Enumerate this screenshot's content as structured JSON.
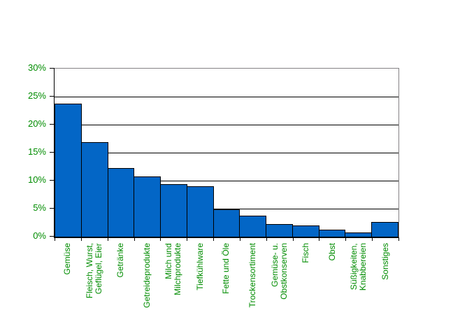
{
  "chart_data": {
    "type": "bar",
    "title": "",
    "xlabel": "",
    "ylabel": "",
    "categories": [
      "Gemüse",
      "Fleisch, Wurst,\nGeflügel, Eier",
      "Getränke",
      "Getreideprodukte",
      "Milch und\nMilchprodukte",
      "Tiefkühlware",
      "Fette und Öle",
      "Trockensortiment",
      "Gemüse- u.\nObstkonserven",
      "Fisch",
      "Obst",
      "Süßigkeiten,\nKnabbereien",
      "Sonstiges"
    ],
    "values": [
      23.7,
      16.9,
      12.3,
      10.8,
      9.4,
      9.0,
      4.9,
      3.8,
      2.2,
      2.0,
      1.3,
      0.8,
      2.6
    ],
    "value_unit": "%",
    "ylim": [
      0,
      30
    ],
    "ytick_step": 5,
    "ytick_labels": [
      "0%",
      "5%",
      "10%",
      "15%",
      "20%",
      "25%",
      "30%"
    ],
    "grid": "horizontal",
    "legend": "none",
    "bar_gap": 0,
    "category_label_rotation_deg": 90,
    "colors": {
      "bar_fill": "#0366C6",
      "bar_border": "#000000",
      "tick_label_text": "#008C00",
      "gridline": "#000000",
      "axis_line": "#000000",
      "plot_frame": "#848284",
      "background": "#FFFFFF"
    }
  }
}
